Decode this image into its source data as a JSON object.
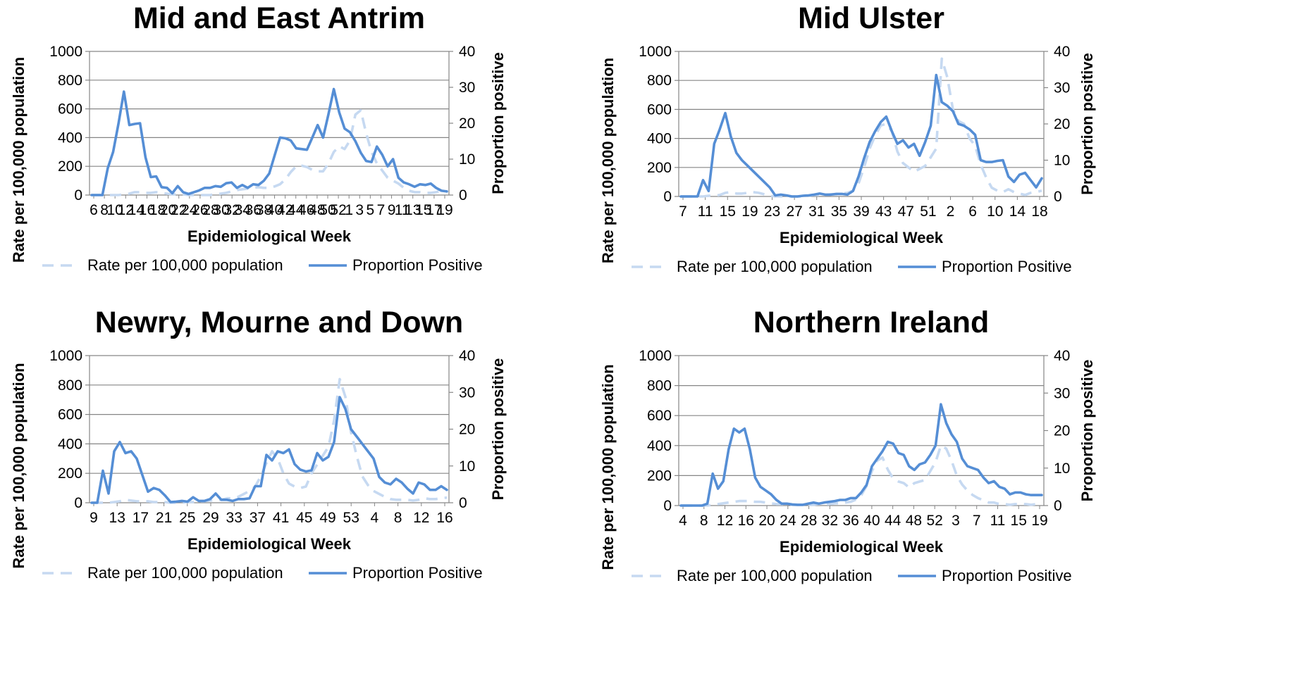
{
  "chart_data": [
    {
      "type": "line",
      "title": "Mid and East Antrim",
      "xlabel": "Epidemiological Week",
      "ylabel": "Rate per 100,000 population",
      "y2label": "Proportion positive",
      "ylim": [
        0,
        1000
      ],
      "y2lim": [
        0,
        40
      ],
      "yticks": [
        "0",
        "200",
        "400",
        "600",
        "800",
        "1000"
      ],
      "y2ticks": [
        "0",
        "10",
        "20",
        "30",
        "40"
      ],
      "xticklabels": [
        "6",
        "8",
        "10",
        "12",
        "14",
        "16",
        "18",
        "20",
        "22",
        "24",
        "26",
        "28",
        "30",
        "32",
        "34",
        "36",
        "38",
        "40",
        "42",
        "44",
        "46",
        "48",
        "50",
        "52",
        "1",
        "3",
        "5",
        "7",
        "9",
        "11",
        "13",
        "15",
        "17",
        "19"
      ],
      "x": [
        "6",
        "7",
        "8",
        "9",
        "10",
        "11",
        "12",
        "13",
        "14",
        "15",
        "16",
        "17",
        "18",
        "19",
        "20",
        "21",
        "22",
        "23",
        "24",
        "25",
        "26",
        "27",
        "28",
        "29",
        "30",
        "31",
        "32",
        "33",
        "34",
        "35",
        "36",
        "37",
        "38",
        "39",
        "40",
        "41",
        "42",
        "43",
        "44",
        "45",
        "46",
        "47",
        "48",
        "49",
        "50",
        "51",
        "52",
        "53",
        "1",
        "2",
        "3",
        "4",
        "5",
        "6",
        "7",
        "8",
        "9",
        "10",
        "11",
        "12",
        "13",
        "14",
        "15",
        "16",
        "17",
        "18",
        "19"
      ],
      "series": [
        {
          "name": "Rate per 100,000 population",
          "axis": "left",
          "color": "#c6d9f1",
          "dash": true,
          "values": [
            0,
            0,
            0,
            0,
            0,
            0,
            5,
            10,
            20,
            20,
            15,
            15,
            20,
            15,
            10,
            5,
            5,
            5,
            0,
            0,
            0,
            0,
            0,
            5,
            10,
            15,
            25,
            35,
            40,
            45,
            50,
            55,
            50,
            50,
            60,
            75,
            110,
            160,
            200,
            205,
            195,
            175,
            165,
            165,
            220,
            300,
            340,
            320,
            380,
            560,
            590,
            430,
            300,
            220,
            170,
            120,
            100,
            80,
            50,
            30,
            20,
            20,
            15,
            15,
            20,
            30,
            25
          ]
        },
        {
          "name": "Proportion Positive",
          "axis": "right",
          "color": "#558ed5",
          "dash": false,
          "values": [
            0,
            0,
            0,
            7.5,
            12,
            20,
            28.8,
            19.5,
            19.8,
            20,
            10.5,
            5,
            5.2,
            2.2,
            2,
            0.5,
            2.5,
            0.8,
            0.3,
            0.8,
            1.3,
            2,
            2,
            2.5,
            2.3,
            3.3,
            3.5,
            2,
            2.8,
            2,
            3,
            2.8,
            4,
            6,
            11,
            16,
            15.8,
            15.2,
            13,
            12.8,
            12.6,
            16,
            19.5,
            16,
            22.5,
            29.5,
            23,
            18.5,
            17.5,
            15,
            11.8,
            9.5,
            9.2,
            13.5,
            11.2,
            8,
            10,
            4.8,
            3.5,
            3,
            2.3,
            3,
            2.8,
            3.2,
            2,
            1.2,
            1
          ]
        }
      ],
      "legend": [
        "Rate per 100,000 population",
        "Proportion Positive"
      ],
      "legend_position": "bottom"
    },
    {
      "type": "line",
      "title": "Mid Ulster",
      "xlabel": "Epidemiological Week",
      "ylabel": "Rate per 100,000 population",
      "y2label": "Proportion positive",
      "ylim": [
        0,
        1000
      ],
      "y2lim": [
        0,
        40
      ],
      "yticks": [
        "0",
        "200",
        "400",
        "600",
        "800",
        "1000"
      ],
      "y2ticks": [
        "0",
        "10",
        "20",
        "30",
        "40"
      ],
      "xticklabels": [
        "7",
        "11",
        "15",
        "19",
        "23",
        "27",
        "31",
        "35",
        "39",
        "43",
        "47",
        "51",
        "2",
        "6",
        "10",
        "14",
        "18"
      ],
      "x": [
        "7",
        "8",
        "9",
        "10",
        "11",
        "12",
        "13",
        "14",
        "15",
        "16",
        "17",
        "18",
        "19",
        "20",
        "21",
        "22",
        "23",
        "24",
        "25",
        "26",
        "27",
        "28",
        "29",
        "30",
        "31",
        "32",
        "33",
        "34",
        "35",
        "36",
        "37",
        "38",
        "39",
        "40",
        "41",
        "42",
        "43",
        "44",
        "45",
        "46",
        "47",
        "48",
        "49",
        "50",
        "51",
        "52",
        "53",
        "1",
        "2",
        "3",
        "4",
        "5",
        "6",
        "7",
        "8",
        "9",
        "10",
        "11",
        "12",
        "13",
        "14",
        "15",
        "16",
        "17",
        "18",
        "19"
      ],
      "series": [
        {
          "name": "Rate per 100,000 population",
          "axis": "left",
          "color": "#c6d9f1",
          "dash": true,
          "values": [
            0,
            0,
            0,
            0,
            0,
            5,
            5,
            10,
            25,
            30,
            20,
            20,
            25,
            30,
            25,
            15,
            5,
            0,
            0,
            0,
            0,
            0,
            0,
            5,
            10,
            10,
            10,
            15,
            15,
            20,
            25,
            40,
            90,
            200,
            330,
            420,
            490,
            500,
            450,
            310,
            230,
            200,
            170,
            190,
            210,
            270,
            330,
            950,
            820,
            600,
            520,
            500,
            400,
            350,
            220,
            130,
            60,
            40,
            30,
            50,
            30,
            20,
            10,
            25,
            30,
            40
          ]
        },
        {
          "name": "Proportion Positive",
          "axis": "right",
          "color": "#558ed5",
          "dash": false,
          "values": [
            0,
            0,
            0,
            0,
            4.5,
            1.5,
            14.5,
            18.5,
            23,
            16.5,
            12,
            10,
            8.5,
            7,
            5.5,
            4,
            2.5,
            0.3,
            0.5,
            0.3,
            0,
            0,
            0.2,
            0.3,
            0.5,
            0.8,
            0.5,
            0.5,
            0.7,
            0.7,
            0.5,
            1.5,
            5.5,
            10.5,
            15,
            18,
            20.5,
            22,
            18,
            14.5,
            15.5,
            13.5,
            14.5,
            11.2,
            15,
            19.5,
            33.5,
            26,
            25,
            23.5,
            20,
            19.5,
            18.5,
            17,
            10,
            9.5,
            9.5,
            9.8,
            10,
            5.5,
            4,
            6,
            6.5,
            4.5,
            2.5,
            5
          ]
        }
      ],
      "legend": [
        "Rate per 100,000 population",
        "Proportion Positive"
      ],
      "legend_position": "bottom"
    },
    {
      "type": "line",
      "title": "Newry, Mourne and Down",
      "xlabel": "Epidemiological Week",
      "ylabel": "Rate per 100,000 population",
      "y2label": "Proportion positive",
      "ylim": [
        0,
        1000
      ],
      "y2lim": [
        0,
        40
      ],
      "yticks": [
        "0",
        "200",
        "400",
        "600",
        "800",
        "1000"
      ],
      "y2ticks": [
        "0",
        "10",
        "20",
        "30",
        "40"
      ],
      "xticklabels": [
        "9",
        "13",
        "17",
        "21",
        "25",
        "29",
        "33",
        "37",
        "41",
        "45",
        "49",
        "53",
        "4",
        "8",
        "12",
        "16"
      ],
      "x": [
        "9",
        "10",
        "11",
        "12",
        "13",
        "14",
        "15",
        "16",
        "17",
        "18",
        "19",
        "20",
        "21",
        "22",
        "23",
        "24",
        "25",
        "26",
        "27",
        "28",
        "29",
        "30",
        "31",
        "32",
        "33",
        "34",
        "35",
        "36",
        "37",
        "38",
        "39",
        "40",
        "41",
        "42",
        "43",
        "44",
        "45",
        "46",
        "47",
        "48",
        "49",
        "50",
        "51",
        "52",
        "53",
        "1",
        "2",
        "3",
        "4",
        "5",
        "6",
        "7",
        "8",
        "9",
        "10",
        "11",
        "12",
        "13",
        "14",
        "15",
        "16",
        "17",
        "18",
        "19"
      ],
      "series": [
        {
          "name": "Rate per 100,000 population",
          "axis": "left",
          "color": "#c6d9f1",
          "dash": true,
          "values": [
            0,
            0,
            0,
            0,
            5,
            10,
            20,
            15,
            10,
            10,
            10,
            5,
            5,
            5,
            0,
            0,
            0,
            5,
            5,
            10,
            10,
            15,
            20,
            20,
            30,
            30,
            40,
            60,
            80,
            110,
            180,
            270,
            350,
            300,
            200,
            130,
            110,
            100,
            110,
            200,
            260,
            320,
            380,
            560,
            840,
            720,
            480,
            320,
            180,
            120,
            80,
            60,
            40,
            25,
            20,
            20,
            20,
            15,
            20,
            30,
            25,
            25,
            30,
            35
          ]
        },
        {
          "name": "Proportion Positive",
          "axis": "right",
          "color": "#558ed5",
          "dash": false,
          "values": [
            0,
            0,
            8.7,
            2.5,
            14,
            16.5,
            13.5,
            14,
            12,
            7.5,
            3,
            4,
            3.5,
            2,
            0.2,
            0.3,
            0.5,
            0.3,
            1.5,
            0.5,
            0.5,
            1,
            2.5,
            0.8,
            0.8,
            0.5,
            1,
            1,
            1.2,
            4.5,
            4.5,
            13,
            11.5,
            14,
            13.5,
            14.5,
            10.5,
            9,
            8.5,
            8.8,
            13.5,
            11.5,
            12.5,
            16.5,
            28.7,
            25.5,
            20,
            18,
            16,
            14,
            12,
            7,
            5.5,
            5,
            6.5,
            5.5,
            3.8,
            2.5,
            5.5,
            5,
            3.5,
            3.5,
            4.5,
            3.5
          ]
        }
      ],
      "legend": [
        "Rate per 100,000 population",
        "Proportion Positive"
      ],
      "legend_position": "bottom"
    },
    {
      "type": "line",
      "title": "Northern Ireland",
      "xlabel": "Epidemiological Week",
      "ylabel": "Rate per 100,000 population",
      "y2label": "Proportion positive",
      "ylim": [
        0,
        1000
      ],
      "y2lim": [
        0,
        40
      ],
      "yticks": [
        "0",
        "200",
        "400",
        "600",
        "800",
        "1000"
      ],
      "y2ticks": [
        "0",
        "10",
        "20",
        "30",
        "40"
      ],
      "xticklabels": [
        "4",
        "8",
        "12",
        "16",
        "20",
        "24",
        "28",
        "32",
        "36",
        "40",
        "44",
        "48",
        "52",
        "3",
        "7",
        "11",
        "15",
        "19"
      ],
      "x": [
        "4",
        "5",
        "6",
        "7",
        "8",
        "9",
        "10",
        "11",
        "12",
        "13",
        "14",
        "15",
        "16",
        "17",
        "18",
        "19",
        "20",
        "21",
        "22",
        "23",
        "24",
        "25",
        "26",
        "27",
        "28",
        "29",
        "30",
        "31",
        "32",
        "33",
        "34",
        "35",
        "36",
        "37",
        "38",
        "39",
        "40",
        "41",
        "42",
        "43",
        "44",
        "45",
        "46",
        "47",
        "48",
        "49",
        "50",
        "51",
        "52",
        "53",
        "1",
        "2",
        "3",
        "4",
        "5",
        "6",
        "7",
        "8",
        "9",
        "10",
        "11",
        "12",
        "13",
        "14",
        "15",
        "16",
        "17",
        "18",
        "19"
      ],
      "series": [
        {
          "name": "Rate per 100,000 population",
          "axis": "left",
          "color": "#c6d9f1",
          "dash": true,
          "values": [
            0,
            0,
            0,
            0,
            0,
            0,
            5,
            10,
            15,
            20,
            25,
            30,
            30,
            30,
            25,
            25,
            20,
            15,
            10,
            10,
            5,
            5,
            5,
            5,
            5,
            5,
            10,
            10,
            10,
            15,
            15,
            20,
            25,
            40,
            70,
            130,
            230,
            300,
            320,
            240,
            180,
            160,
            150,
            120,
            150,
            160,
            170,
            230,
            290,
            400,
            380,
            300,
            200,
            140,
            100,
            70,
            50,
            35,
            20,
            20,
            10,
            10,
            5,
            10,
            10,
            10,
            5,
            10,
            10
          ]
        },
        {
          "name": "Proportion Positive",
          "axis": "right",
          "color": "#558ed5",
          "dash": false,
          "values": [
            0,
            0,
            0,
            0,
            0,
            0.5,
            8.5,
            4.5,
            6.5,
            15,
            20.5,
            19.5,
            20.5,
            15,
            7.5,
            5,
            4,
            3,
            1.5,
            0.5,
            0.5,
            0.3,
            0.2,
            0.2,
            0.5,
            0.8,
            0.5,
            0.8,
            1,
            1.2,
            1.5,
            1.5,
            2,
            2,
            3.5,
            5.5,
            10.5,
            12.5,
            14.5,
            17,
            16.5,
            14,
            13.5,
            10.5,
            9.5,
            11,
            11.5,
            13.5,
            16,
            27,
            22,
            19,
            17,
            12.5,
            10.5,
            10,
            9.5,
            7.5,
            6,
            6.5,
            5,
            4.5,
            3,
            3.5,
            3.5,
            3,
            2.8,
            2.8,
            2.8
          ]
        }
      ],
      "legend": [
        "Rate per 100,000 population",
        "Proportion Positive"
      ],
      "legend_position": "bottom"
    }
  ]
}
